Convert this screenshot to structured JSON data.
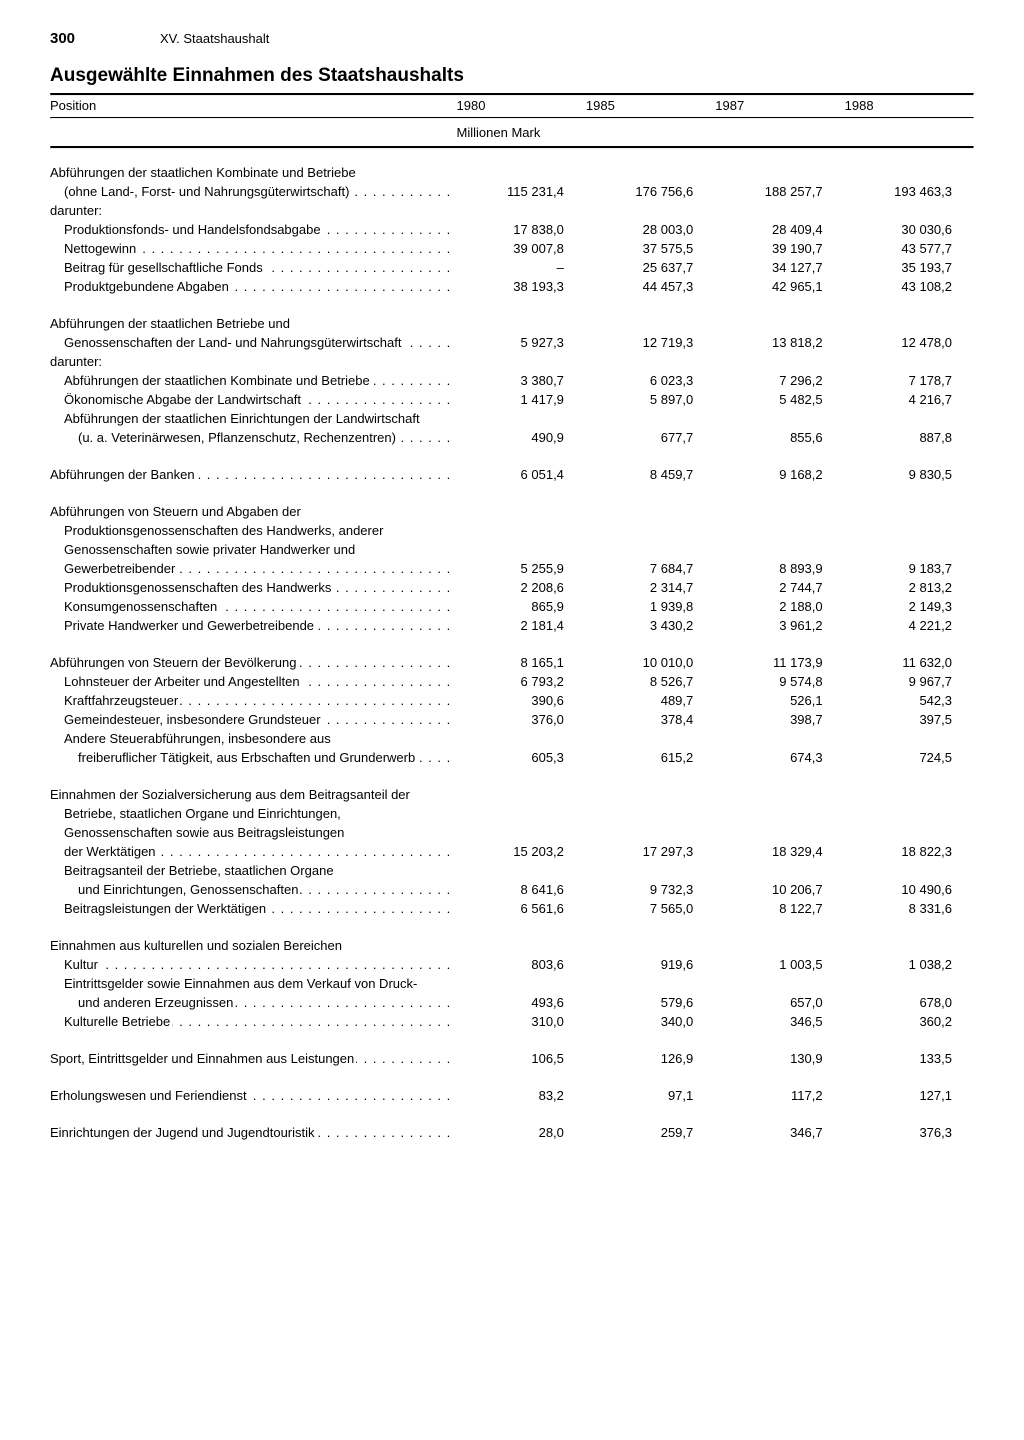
{
  "page_number": "300",
  "chapter": "XV. Staatshaushalt",
  "title": "Ausgewählte Einnahmen des Staatshaushalts",
  "col_label": "Position",
  "years": [
    "1980",
    "1985",
    "1987",
    "1988"
  ],
  "unit": "Millionen Mark",
  "rows": [
    {
      "type": "line",
      "indent": 0,
      "wrap": true,
      "label": "Abführungen der staatlichen Kombinate und Betriebe",
      "vals": [
        "",
        "",
        "",
        ""
      ]
    },
    {
      "type": "line",
      "indent": 1,
      "dots": true,
      "label": "(ohne Land-, Forst- und Nahrungsgüterwirtschaft)",
      "vals": [
        "115 231,4",
        "176 756,6",
        "188 257,7",
        "193 463,3"
      ]
    },
    {
      "type": "line",
      "indent": 0,
      "label": "darunter:",
      "vals": [
        "",
        "",
        "",
        ""
      ]
    },
    {
      "type": "line",
      "indent": 1,
      "dots": true,
      "label": "Produktionsfonds- und Handelsfondsabgabe",
      "vals": [
        "17 838,0",
        "28 003,0",
        "28 409,4",
        "30 030,6"
      ]
    },
    {
      "type": "line",
      "indent": 1,
      "dots": true,
      "label": "Nettogewinn",
      "vals": [
        "39 007,8",
        "37 575,5",
        "39 190,7",
        "43 577,7"
      ]
    },
    {
      "type": "line",
      "indent": 1,
      "dots": true,
      "label": "Beitrag für gesellschaftliche Fonds",
      "vals": [
        "–",
        "25 637,7",
        "34 127,7",
        "35 193,7"
      ]
    },
    {
      "type": "line",
      "indent": 1,
      "dots": true,
      "label": "Produktgebundene Abgaben",
      "vals": [
        "38 193,3",
        "44 457,3",
        "42 965,1",
        "43 108,2"
      ]
    },
    {
      "type": "gap"
    },
    {
      "type": "line",
      "indent": 0,
      "wrap": true,
      "label": "Abführungen der staatlichen Betriebe und",
      "vals": [
        "",
        "",
        "",
        ""
      ]
    },
    {
      "type": "line",
      "indent": 1,
      "dots": true,
      "label": "Genossenschaften der Land- und Nahrungsgüterwirtschaft",
      "vals": [
        "5 927,3",
        "12 719,3",
        "13 818,2",
        "12 478,0"
      ]
    },
    {
      "type": "line",
      "indent": 0,
      "label": "darunter:",
      "vals": [
        "",
        "",
        "",
        ""
      ]
    },
    {
      "type": "line",
      "indent": 1,
      "dots": true,
      "label": "Abführungen der staatlichen Kombinate und Betriebe",
      "vals": [
        "3 380,7",
        "6 023,3",
        "7 296,2",
        "7 178,7"
      ]
    },
    {
      "type": "line",
      "indent": 1,
      "dots": true,
      "label": "Ökonomische Abgabe der Landwirtschaft",
      "vals": [
        "1 417,9",
        "5 897,0",
        "5 482,5",
        "4 216,7"
      ]
    },
    {
      "type": "line",
      "indent": 1,
      "wrap": true,
      "label": "Abführungen der staatlichen Einrichtungen der Landwirtschaft",
      "vals": [
        "",
        "",
        "",
        ""
      ]
    },
    {
      "type": "line",
      "indent": 2,
      "dots": true,
      "label": "(u. a. Veterinärwesen, Pflanzenschutz, Rechenzentren)",
      "vals": [
        "490,9",
        "677,7",
        "855,6",
        "887,8"
      ]
    },
    {
      "type": "gap"
    },
    {
      "type": "line",
      "indent": 0,
      "dots": true,
      "label": "Abführungen der Banken",
      "vals": [
        "6 051,4",
        "8 459,7",
        "9 168,2",
        "9 830,5"
      ]
    },
    {
      "type": "gap"
    },
    {
      "type": "line",
      "indent": 0,
      "wrap": true,
      "label": "Abführungen von Steuern und Abgaben der",
      "vals": [
        "",
        "",
        "",
        ""
      ]
    },
    {
      "type": "line",
      "indent": 1,
      "wrap": true,
      "label": "Produktionsgenossenschaften des Handwerks, anderer",
      "vals": [
        "",
        "",
        "",
        ""
      ]
    },
    {
      "type": "line",
      "indent": 1,
      "wrap": true,
      "label": "Genossenschaften sowie privater Handwerker und",
      "vals": [
        "",
        "",
        "",
        ""
      ]
    },
    {
      "type": "line",
      "indent": 1,
      "dots": true,
      "label": "Gewerbetreibender",
      "vals": [
        "5 255,9",
        "7 684,7",
        "8 893,9",
        "9 183,7"
      ]
    },
    {
      "type": "line",
      "indent": 1,
      "dots": true,
      "label": "Produktionsgenossenschaften des Handwerks",
      "vals": [
        "2 208,6",
        "2 314,7",
        "2 744,7",
        "2 813,2"
      ]
    },
    {
      "type": "line",
      "indent": 1,
      "dots": true,
      "label": "Konsumgenossenschaften",
      "vals": [
        "865,9",
        "1 939,8",
        "2 188,0",
        "2 149,3"
      ]
    },
    {
      "type": "line",
      "indent": 1,
      "dots": true,
      "label": "Private Handwerker und Gewerbetreibende",
      "vals": [
        "2 181,4",
        "3 430,2",
        "3 961,2",
        "4 221,2"
      ]
    },
    {
      "type": "gap"
    },
    {
      "type": "line",
      "indent": 0,
      "dots": true,
      "label": "Abführungen von Steuern der Bevölkerung",
      "vals": [
        "8 165,1",
        "10 010,0",
        "11 173,9",
        "11 632,0"
      ]
    },
    {
      "type": "line",
      "indent": 1,
      "dots": true,
      "label": "Lohnsteuer der Arbeiter und Angestellten",
      "vals": [
        "6 793,2",
        "8 526,7",
        "9 574,8",
        "9 967,7"
      ]
    },
    {
      "type": "line",
      "indent": 1,
      "dots": true,
      "label": "Kraftfahrzeugsteuer",
      "vals": [
        "390,6",
        "489,7",
        "526,1",
        "542,3"
      ]
    },
    {
      "type": "line",
      "indent": 1,
      "dots": true,
      "label": "Gemeindesteuer, insbesondere Grundsteuer",
      "vals": [
        "376,0",
        "378,4",
        "398,7",
        "397,5"
      ]
    },
    {
      "type": "line",
      "indent": 1,
      "wrap": true,
      "label": "Andere Steuerabführungen, insbesondere aus",
      "vals": [
        "",
        "",
        "",
        ""
      ]
    },
    {
      "type": "line",
      "indent": 2,
      "dots": true,
      "label": "freiberuflicher Tätigkeit, aus Erbschaften und Grunderwerb",
      "vals": [
        "605,3",
        "615,2",
        "674,3",
        "724,5"
      ]
    },
    {
      "type": "gap"
    },
    {
      "type": "line",
      "indent": 0,
      "wrap": true,
      "label": "Einnahmen der Sozialversicherung aus dem Beitragsanteil der",
      "vals": [
        "",
        "",
        "",
        ""
      ]
    },
    {
      "type": "line",
      "indent": 1,
      "wrap": true,
      "label": "Betriebe, staatlichen Organe und Einrichtungen,",
      "vals": [
        "",
        "",
        "",
        ""
      ]
    },
    {
      "type": "line",
      "indent": 1,
      "wrap": true,
      "label": "Genossenschaften sowie aus Beitragsleistungen",
      "vals": [
        "",
        "",
        "",
        ""
      ]
    },
    {
      "type": "line",
      "indent": 1,
      "dots": true,
      "label": "der Werktätigen",
      "vals": [
        "15 203,2",
        "17 297,3",
        "18 329,4",
        "18 822,3"
      ]
    },
    {
      "type": "line",
      "indent": 1,
      "wrap": true,
      "label": "Beitragsanteil der Betriebe, staatlichen Organe",
      "vals": [
        "",
        "",
        "",
        ""
      ]
    },
    {
      "type": "line",
      "indent": 2,
      "dots": true,
      "label": "und Einrichtungen, Genossenschaften",
      "vals": [
        "8 641,6",
        "9 732,3",
        "10 206,7",
        "10 490,6"
      ]
    },
    {
      "type": "line",
      "indent": 1,
      "dots": true,
      "label": "Beitragsleistungen der Werktätigen",
      "vals": [
        "6 561,6",
        "7 565,0",
        "8 122,7",
        "8 331,6"
      ]
    },
    {
      "type": "gap"
    },
    {
      "type": "line",
      "indent": 0,
      "wrap": true,
      "label": "Einnahmen aus kulturellen und sozialen Bereichen",
      "vals": [
        "",
        "",
        "",
        ""
      ]
    },
    {
      "type": "line",
      "indent": 1,
      "dots": true,
      "label": "Kultur",
      "vals": [
        "803,6",
        "919,6",
        "1 003,5",
        "1 038,2"
      ]
    },
    {
      "type": "line",
      "indent": 1,
      "wrap": true,
      "label": "Eintrittsgelder sowie Einnahmen aus dem Verkauf von Druck-",
      "vals": [
        "",
        "",
        "",
        ""
      ]
    },
    {
      "type": "line",
      "indent": 2,
      "dots": true,
      "label": "und anderen Erzeugnissen",
      "vals": [
        "493,6",
        "579,6",
        "657,0",
        "678,0"
      ]
    },
    {
      "type": "line",
      "indent": 1,
      "dots": true,
      "label": "Kulturelle Betriebe",
      "vals": [
        "310,0",
        "340,0",
        "346,5",
        "360,2"
      ]
    },
    {
      "type": "gap"
    },
    {
      "type": "line",
      "indent": 0,
      "dots": true,
      "label": "Sport, Eintrittsgelder und Einnahmen aus Leistungen",
      "vals": [
        "106,5",
        "126,9",
        "130,9",
        "133,5"
      ]
    },
    {
      "type": "gap"
    },
    {
      "type": "line",
      "indent": 0,
      "dots": true,
      "label": "Erholungswesen und Feriendienst",
      "vals": [
        "83,2",
        "97,1",
        "117,2",
        "127,1"
      ]
    },
    {
      "type": "gap"
    },
    {
      "type": "line",
      "indent": 0,
      "dots": true,
      "label": "Einrichtungen der Jugend und Jugendtouristik",
      "vals": [
        "28,0",
        "259,7",
        "346,7",
        "376,3"
      ]
    }
  ]
}
